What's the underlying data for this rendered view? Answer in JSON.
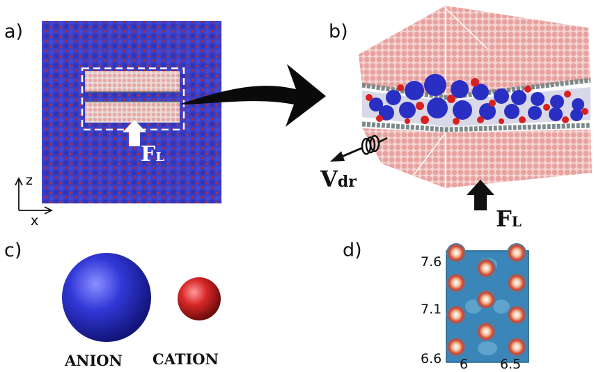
{
  "panels": {
    "a": {
      "label": "a)",
      "force": "F",
      "force_sub": "L",
      "axis_z": "z",
      "axis_x": "x"
    },
    "b": {
      "label": "b)",
      "force": "F",
      "force_sub": "L",
      "drive": "V",
      "drive_sub": "dr"
    },
    "c": {
      "label": "c)",
      "anion": "ANION",
      "cation": "CATION"
    },
    "d": {
      "label": "d)",
      "y_ticks": [
        "7.6",
        "7.1",
        "6.6"
      ],
      "x_ticks": [
        "6",
        "6.5"
      ]
    }
  },
  "colors": {
    "anion": "#2e33c9",
    "cation": "#d62222",
    "wall": "#f0b4b0",
    "carbon": "#7d8a8c",
    "map_low": "#2f7fb0",
    "map_high": "#d23a25"
  },
  "icons": [
    "arrow-right-icon",
    "force-arrow-icon",
    "spring-icon",
    "axes-icon"
  ]
}
